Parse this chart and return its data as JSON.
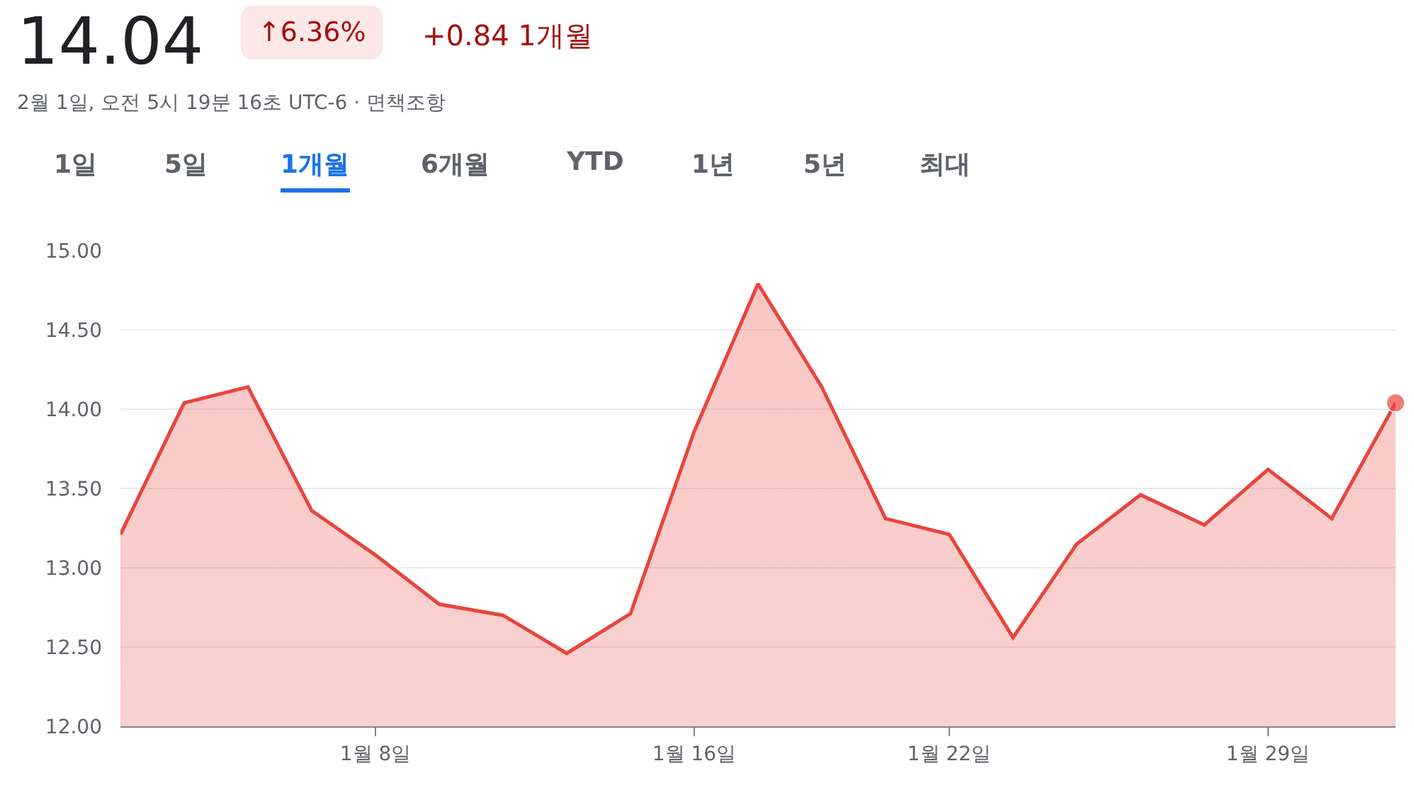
{
  "chart_data": {
    "type": "area",
    "title": "14.04",
    "subtitle": "2월 1일, 오전 5시 19분 16초 UTC-6 · 면책조항",
    "annotations": [
      "↑6.36%",
      "+0.84 1개월",
      "1일",
      "5일",
      "1개월",
      "6개월",
      "YTD",
      "1년",
      "5년",
      "최대"
    ],
    "categories": [
      null,
      null,
      null,
      null,
      "1월 8일",
      null,
      null,
      null,
      null,
      "1월 16일",
      null,
      null,
      null,
      "1월 22일",
      null,
      null,
      null,
      null,
      "1월 29일",
      null,
      null
    ],
    "series": [
      {
        "color": "#e8453c",
        "values": [
          13.21,
          14.04,
          14.14,
          13.36,
          13.08,
          12.77,
          12.7,
          12.46,
          12.71,
          13.86,
          14.79,
          14.14,
          13.31,
          13.21,
          12.56,
          13.15,
          13.46,
          13.27,
          13.62,
          13.31,
          14.04
        ]
      }
    ],
    "ylim": [
      12,
      15
    ],
    "yticks": [
      {
        "value": 12,
        "label": "12.00"
      },
      {
        "value": 12.5,
        "label": "12.50"
      },
      {
        "value": 13,
        "label": "13.00"
      },
      {
        "value": 13.5,
        "label": "13.50"
      },
      {
        "value": 14,
        "label": "14.00"
      },
      {
        "value": 14.5,
        "label": "14.50"
      },
      {
        "value": 15,
        "label": "15.00"
      }
    ],
    "grid": "y"
  }
}
